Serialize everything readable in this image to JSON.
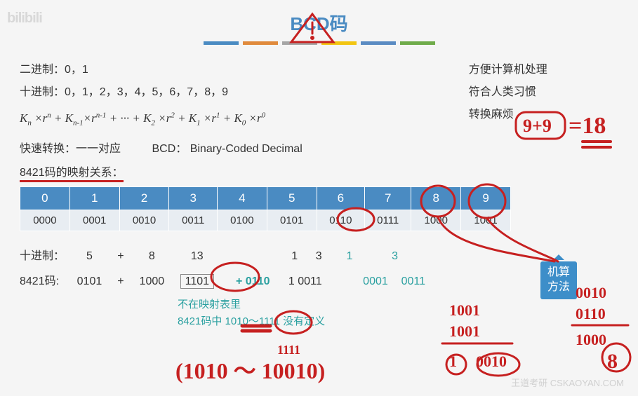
{
  "watermark_left": "bilibili",
  "watermark_right": "王道考研 CSKAOYAN.COM",
  "title": "BCD码",
  "colorbars": [
    "#4a8bc2",
    "#e08a3c",
    "#a5a5a5",
    "#f2c511",
    "#5a8bc2",
    "#6fab4a"
  ],
  "left": {
    "binary_label": "二进制：0，1",
    "decimal_label": "十进制：0，1，2，3，4，5，6，7，8，9"
  },
  "right": {
    "l1": "方便计算机处理",
    "l2": "符合人类习惯",
    "l3": "转换麻烦"
  },
  "formula": "K<sub>n</sub> ×r<sup>n</sup> + K<sub>n-1</sub>×r<sup>n-1</sup> + ··· + K<sub>2</sub> ×r<sup>2</sup> + K<sub>1</sub> ×r<sup>1</sup> + K<sub>0</sub> ×r<sup>0</sup>",
  "mid": {
    "fast": "快速转换：一一对应",
    "bcd": "BCD： Binary-Coded Decimal",
    "map": "8421码的映射关系："
  },
  "table": {
    "headers": [
      "0",
      "1",
      "2",
      "3",
      "4",
      "5",
      "6",
      "7",
      "8",
      "9"
    ],
    "row": [
      "0000",
      "0001",
      "0010",
      "0011",
      "0100",
      "0101",
      "0110",
      "0111",
      "1000",
      "1001"
    ],
    "header_bg": "#4a8bc2",
    "cell_bg": "#e8edf2"
  },
  "example": {
    "dec_label": "十进制：",
    "bcd_label": "8421码:",
    "d5": "5",
    "plus": "+",
    "d8": "8",
    "d13": "13",
    "d1": "1",
    "d3": "3",
    "b5": "0101",
    "b8": "1000",
    "b13": "1101",
    "corr": "+ 0110",
    "res": "1 0011",
    "sep1": "1",
    "sep3": "3",
    "bin1": "0001",
    "bin3": "0011"
  },
  "callout": "机算\n方法",
  "note1": "不在映射表里",
  "note2": "8421码中 1010～1111 没有定义",
  "annotations": {
    "color": "#c62020",
    "eq": "9+9",
    "eqres": "=18",
    "paren": "(1010 ～ 10010)",
    "col1": [
      "0010",
      "0110",
      "1000",
      "8"
    ],
    "col2": [
      "1001",
      "1001",
      "10010",
      "1",
      "0010"
    ]
  }
}
